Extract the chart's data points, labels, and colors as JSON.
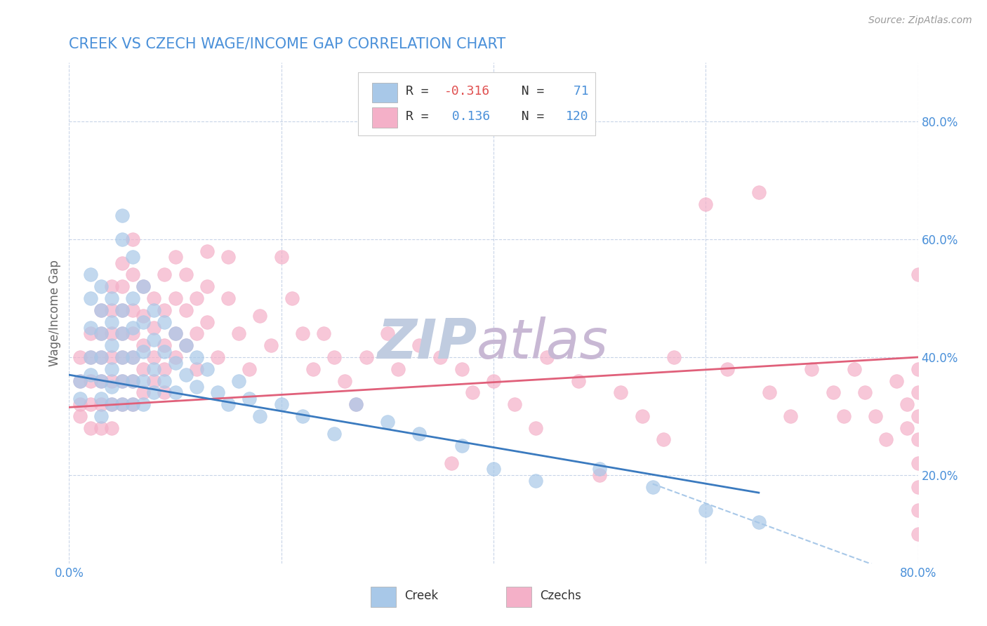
{
  "title": "CREEK VS CZECH WAGE/INCOME GAP CORRELATION CHART",
  "source": "Source: ZipAtlas.com",
  "ylabel": "Wage/Income Gap",
  "xlim": [
    0.0,
    0.8
  ],
  "ylim": [
    0.05,
    0.9
  ],
  "creek_R": "-0.316",
  "creek_N": "71",
  "czech_R": "0.136",
  "czech_N": "120",
  "creek_color": "#a8c8e8",
  "czech_color": "#f4b0c8",
  "creek_line_color": "#3a7abf",
  "czech_line_color": "#e0607a",
  "dashed_line_color": "#a8c8e8",
  "background_color": "#ffffff",
  "grid_color": "#c8d4e8",
  "title_color": "#4a90d9",
  "watermark_color_zip": "#c0cce0",
  "watermark_color_atlas": "#c8b8d4",
  "creek_scatter": [
    [
      0.01,
      0.33
    ],
    [
      0.01,
      0.36
    ],
    [
      0.02,
      0.5
    ],
    [
      0.02,
      0.54
    ],
    [
      0.02,
      0.45
    ],
    [
      0.02,
      0.4
    ],
    [
      0.02,
      0.37
    ],
    [
      0.03,
      0.52
    ],
    [
      0.03,
      0.48
    ],
    [
      0.03,
      0.44
    ],
    [
      0.03,
      0.4
    ],
    [
      0.03,
      0.36
    ],
    [
      0.03,
      0.33
    ],
    [
      0.03,
      0.3
    ],
    [
      0.04,
      0.5
    ],
    [
      0.04,
      0.46
    ],
    [
      0.04,
      0.42
    ],
    [
      0.04,
      0.38
    ],
    [
      0.04,
      0.35
    ],
    [
      0.04,
      0.32
    ],
    [
      0.05,
      0.64
    ],
    [
      0.05,
      0.6
    ],
    [
      0.05,
      0.48
    ],
    [
      0.05,
      0.44
    ],
    [
      0.05,
      0.4
    ],
    [
      0.05,
      0.36
    ],
    [
      0.05,
      0.32
    ],
    [
      0.06,
      0.57
    ],
    [
      0.06,
      0.5
    ],
    [
      0.06,
      0.45
    ],
    [
      0.06,
      0.4
    ],
    [
      0.06,
      0.36
    ],
    [
      0.06,
      0.32
    ],
    [
      0.07,
      0.52
    ],
    [
      0.07,
      0.46
    ],
    [
      0.07,
      0.41
    ],
    [
      0.07,
      0.36
    ],
    [
      0.07,
      0.32
    ],
    [
      0.08,
      0.48
    ],
    [
      0.08,
      0.43
    ],
    [
      0.08,
      0.38
    ],
    [
      0.08,
      0.34
    ],
    [
      0.09,
      0.46
    ],
    [
      0.09,
      0.41
    ],
    [
      0.09,
      0.36
    ],
    [
      0.1,
      0.44
    ],
    [
      0.1,
      0.39
    ],
    [
      0.1,
      0.34
    ],
    [
      0.11,
      0.42
    ],
    [
      0.11,
      0.37
    ],
    [
      0.12,
      0.4
    ],
    [
      0.12,
      0.35
    ],
    [
      0.13,
      0.38
    ],
    [
      0.14,
      0.34
    ],
    [
      0.15,
      0.32
    ],
    [
      0.16,
      0.36
    ],
    [
      0.17,
      0.33
    ],
    [
      0.18,
      0.3
    ],
    [
      0.2,
      0.32
    ],
    [
      0.22,
      0.3
    ],
    [
      0.25,
      0.27
    ],
    [
      0.27,
      0.32
    ],
    [
      0.3,
      0.29
    ],
    [
      0.33,
      0.27
    ],
    [
      0.37,
      0.25
    ],
    [
      0.4,
      0.21
    ],
    [
      0.44,
      0.19
    ],
    [
      0.5,
      0.21
    ],
    [
      0.55,
      0.18
    ],
    [
      0.6,
      0.14
    ],
    [
      0.65,
      0.12
    ]
  ],
  "czech_scatter": [
    [
      0.01,
      0.32
    ],
    [
      0.01,
      0.36
    ],
    [
      0.01,
      0.4
    ],
    [
      0.01,
      0.3
    ],
    [
      0.02,
      0.44
    ],
    [
      0.02,
      0.4
    ],
    [
      0.02,
      0.36
    ],
    [
      0.02,
      0.32
    ],
    [
      0.02,
      0.28
    ],
    [
      0.03,
      0.48
    ],
    [
      0.03,
      0.44
    ],
    [
      0.03,
      0.4
    ],
    [
      0.03,
      0.36
    ],
    [
      0.03,
      0.32
    ],
    [
      0.03,
      0.28
    ],
    [
      0.04,
      0.52
    ],
    [
      0.04,
      0.48
    ],
    [
      0.04,
      0.44
    ],
    [
      0.04,
      0.4
    ],
    [
      0.04,
      0.36
    ],
    [
      0.04,
      0.32
    ],
    [
      0.04,
      0.28
    ],
    [
      0.05,
      0.56
    ],
    [
      0.05,
      0.52
    ],
    [
      0.05,
      0.48
    ],
    [
      0.05,
      0.44
    ],
    [
      0.05,
      0.4
    ],
    [
      0.05,
      0.36
    ],
    [
      0.05,
      0.32
    ],
    [
      0.06,
      0.6
    ],
    [
      0.06,
      0.54
    ],
    [
      0.06,
      0.48
    ],
    [
      0.06,
      0.44
    ],
    [
      0.06,
      0.4
    ],
    [
      0.06,
      0.36
    ],
    [
      0.06,
      0.32
    ],
    [
      0.07,
      0.52
    ],
    [
      0.07,
      0.47
    ],
    [
      0.07,
      0.42
    ],
    [
      0.07,
      0.38
    ],
    [
      0.07,
      0.34
    ],
    [
      0.08,
      0.5
    ],
    [
      0.08,
      0.45
    ],
    [
      0.08,
      0.4
    ],
    [
      0.08,
      0.36
    ],
    [
      0.09,
      0.54
    ],
    [
      0.09,
      0.48
    ],
    [
      0.09,
      0.42
    ],
    [
      0.09,
      0.38
    ],
    [
      0.09,
      0.34
    ],
    [
      0.1,
      0.57
    ],
    [
      0.1,
      0.5
    ],
    [
      0.1,
      0.44
    ],
    [
      0.1,
      0.4
    ],
    [
      0.11,
      0.54
    ],
    [
      0.11,
      0.48
    ],
    [
      0.11,
      0.42
    ],
    [
      0.12,
      0.5
    ],
    [
      0.12,
      0.44
    ],
    [
      0.12,
      0.38
    ],
    [
      0.13,
      0.58
    ],
    [
      0.13,
      0.52
    ],
    [
      0.13,
      0.46
    ],
    [
      0.14,
      0.4
    ],
    [
      0.15,
      0.57
    ],
    [
      0.15,
      0.5
    ],
    [
      0.16,
      0.44
    ],
    [
      0.17,
      0.38
    ],
    [
      0.18,
      0.47
    ],
    [
      0.19,
      0.42
    ],
    [
      0.2,
      0.57
    ],
    [
      0.21,
      0.5
    ],
    [
      0.22,
      0.44
    ],
    [
      0.23,
      0.38
    ],
    [
      0.24,
      0.44
    ],
    [
      0.25,
      0.4
    ],
    [
      0.26,
      0.36
    ],
    [
      0.27,
      0.32
    ],
    [
      0.28,
      0.4
    ],
    [
      0.3,
      0.44
    ],
    [
      0.31,
      0.38
    ],
    [
      0.33,
      0.42
    ],
    [
      0.35,
      0.4
    ],
    [
      0.36,
      0.22
    ],
    [
      0.37,
      0.38
    ],
    [
      0.38,
      0.34
    ],
    [
      0.4,
      0.36
    ],
    [
      0.42,
      0.32
    ],
    [
      0.44,
      0.28
    ],
    [
      0.45,
      0.4
    ],
    [
      0.48,
      0.36
    ],
    [
      0.5,
      0.2
    ],
    [
      0.52,
      0.34
    ],
    [
      0.54,
      0.3
    ],
    [
      0.56,
      0.26
    ],
    [
      0.57,
      0.4
    ],
    [
      0.6,
      0.66
    ],
    [
      0.62,
      0.38
    ],
    [
      0.65,
      0.68
    ],
    [
      0.66,
      0.34
    ],
    [
      0.68,
      0.3
    ],
    [
      0.7,
      0.38
    ],
    [
      0.72,
      0.34
    ],
    [
      0.73,
      0.3
    ],
    [
      0.74,
      0.38
    ],
    [
      0.75,
      0.34
    ],
    [
      0.76,
      0.3
    ],
    [
      0.77,
      0.26
    ],
    [
      0.78,
      0.36
    ],
    [
      0.79,
      0.32
    ],
    [
      0.79,
      0.28
    ],
    [
      0.8,
      0.54
    ],
    [
      0.8,
      0.38
    ],
    [
      0.8,
      0.34
    ],
    [
      0.8,
      0.3
    ],
    [
      0.8,
      0.26
    ],
    [
      0.8,
      0.22
    ],
    [
      0.8,
      0.18
    ],
    [
      0.8,
      0.14
    ],
    [
      0.8,
      0.1
    ]
  ],
  "yticks": [
    0.2,
    0.4,
    0.6,
    0.8
  ],
  "ytick_labels": [
    "20.0%",
    "40.0%",
    "60.0%",
    "80.0%"
  ],
  "xtick_positions": [
    0.0,
    0.8
  ],
  "xtick_labels": [
    "0.0%",
    "80.0%"
  ],
  "xtick_minor_positions": [
    0.2,
    0.4,
    0.6
  ],
  "legend_creek_label": "Creek",
  "legend_czech_label": "Czechs",
  "creek_line_x": [
    0.0,
    0.65
  ],
  "creek_line_y": [
    0.37,
    0.17
  ],
  "czech_line_x": [
    0.0,
    0.8
  ],
  "czech_line_y": [
    0.315,
    0.4
  ],
  "dashed_line_x": [
    0.55,
    0.8
  ],
  "dashed_line_y": [
    0.185,
    0.02
  ]
}
